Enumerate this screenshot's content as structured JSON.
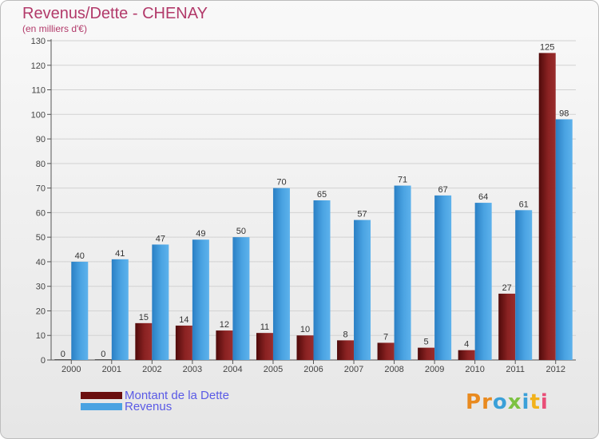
{
  "header": {
    "title": "Revenus/Dette - CHENAY",
    "subtitle": "(en milliers d'€)"
  },
  "chart_data": {
    "type": "bar",
    "categories": [
      "2000",
      "2001",
      "2002",
      "2003",
      "2004",
      "2005",
      "2006",
      "2007",
      "2008",
      "2009",
      "2010",
      "2011",
      "2012"
    ],
    "series": [
      {
        "name": "Montant de la Dette",
        "values": [
          0,
          0,
          15,
          14,
          12,
          11,
          10,
          8,
          7,
          5,
          4,
          27,
          125
        ],
        "color": "#7a1a1a"
      },
      {
        "name": "Revenus",
        "values": [
          40,
          41,
          47,
          49,
          50,
          70,
          65,
          57,
          71,
          67,
          64,
          61,
          98
        ],
        "color": "#4aa3e2"
      }
    ],
    "title": "Revenus/Dette - CHENAY",
    "ylabel": "(en milliers d'€)",
    "ylim": [
      0,
      130
    ],
    "yticks": [
      0,
      10,
      20,
      30,
      40,
      50,
      60,
      70,
      80,
      90,
      100,
      110,
      120,
      130
    ],
    "grid": true,
    "legend": "bottom-left"
  },
  "legend": {
    "items": [
      {
        "label": "Montant de la Dette",
        "color": "#7a1a1a"
      },
      {
        "label": "Revenus",
        "color": "#4aa3e2"
      }
    ]
  },
  "logo": {
    "text": "Proxiti",
    "letter_colors": [
      "#e98a1f",
      "#e98a1f",
      "#3aa0d8",
      "#7cc242",
      "#3aa0d8",
      "#f2b21b",
      "#e94e77"
    ]
  }
}
